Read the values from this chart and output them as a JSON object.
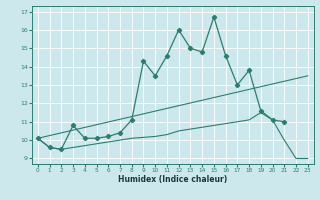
{
  "xlabel": "Humidex (Indice chaleur)",
  "line_color": "#2d7d6e",
  "bg_color": "#cce8ec",
  "grid_color": "#b0d5da",
  "xlim": [
    -0.5,
    23.5
  ],
  "ylim": [
    8.7,
    17.3
  ],
  "yticks": [
    9,
    10,
    11,
    12,
    13,
    14,
    15,
    16,
    17
  ],
  "xticks": [
    0,
    1,
    2,
    3,
    4,
    5,
    6,
    7,
    8,
    9,
    10,
    11,
    12,
    13,
    14,
    15,
    16,
    17,
    18,
    19,
    20,
    21,
    22,
    23
  ],
  "line1_x": [
    0,
    1,
    2,
    3,
    4,
    5,
    6,
    7,
    8,
    9,
    10,
    11,
    12,
    13,
    14,
    15,
    16,
    17,
    18,
    19,
    20,
    21
  ],
  "line1_y": [
    10.1,
    9.6,
    9.5,
    10.8,
    10.1,
    10.1,
    10.2,
    10.4,
    11.1,
    14.3,
    13.5,
    14.6,
    16.0,
    15.0,
    14.8,
    16.7,
    14.6,
    13.0,
    13.8,
    11.6,
    11.1,
    11.0
  ],
  "line2_x": [
    0,
    23
  ],
  "line2_y": [
    10.1,
    13.5
  ],
  "line3_x": [
    0,
    1,
    2,
    3,
    4,
    5,
    6,
    7,
    8,
    9,
    10,
    11,
    12,
    13,
    14,
    15,
    16,
    17,
    18,
    19,
    20,
    21,
    22,
    23
  ],
  "line3_y": [
    10.1,
    9.6,
    9.5,
    9.6,
    9.7,
    9.8,
    9.9,
    10.0,
    10.1,
    10.15,
    10.2,
    10.3,
    10.5,
    10.6,
    10.7,
    10.8,
    10.9,
    11.0,
    11.1,
    11.5,
    11.1,
    10.0,
    9.0,
    9.0
  ]
}
